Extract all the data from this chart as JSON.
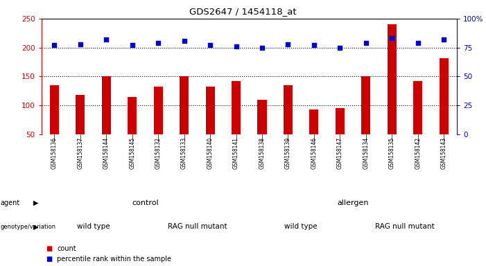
{
  "title": "GDS2647 / 1454118_at",
  "samples": [
    "GSM158136",
    "GSM158137",
    "GSM158144",
    "GSM158145",
    "GSM158132",
    "GSM158133",
    "GSM158140",
    "GSM158141",
    "GSM158138",
    "GSM158139",
    "GSM158146",
    "GSM158147",
    "GSM158134",
    "GSM158135",
    "GSM158142",
    "GSM158143"
  ],
  "counts": [
    135,
    118,
    150,
    115,
    133,
    150,
    133,
    142,
    110,
    135,
    93,
    95,
    150,
    240,
    142,
    182
  ],
  "percentiles": [
    77,
    78,
    82,
    77,
    79,
    81,
    77,
    76,
    75,
    78,
    77,
    75,
    79,
    83,
    79,
    82
  ],
  "bar_color": "#cc0000",
  "dot_color": "#0000cc",
  "ylim_left": [
    50,
    250
  ],
  "ylim_right": [
    0,
    100
  ],
  "yticks_left": [
    50,
    100,
    150,
    200,
    250
  ],
  "yticks_right": [
    0,
    25,
    50,
    75,
    100
  ],
  "yticklabels_right": [
    "0",
    "25",
    "50",
    "75",
    "100%"
  ],
  "grid_values": [
    100,
    150,
    200
  ],
  "agent_labels": [
    {
      "text": "control",
      "start": 0,
      "end": 8,
      "color": "#99ff99"
    },
    {
      "text": "allergen",
      "start": 8,
      "end": 16,
      "color": "#33dd33"
    }
  ],
  "genotype_labels": [
    {
      "text": "wild type",
      "start": 0,
      "end": 4,
      "color": "#ee88ee"
    },
    {
      "text": "RAG null mutant",
      "start": 4,
      "end": 8,
      "color": "#cc44cc"
    },
    {
      "text": "wild type",
      "start": 8,
      "end": 12,
      "color": "#ee88ee"
    },
    {
      "text": "RAG null mutant",
      "start": 12,
      "end": 16,
      "color": "#cc44cc"
    }
  ],
  "legend_count_color": "#cc0000",
  "legend_dot_color": "#0000cc",
  "background_color": "#ffffff",
  "xtick_bg_color": "#cccccc",
  "plot_bg_color": "#ffffff"
}
